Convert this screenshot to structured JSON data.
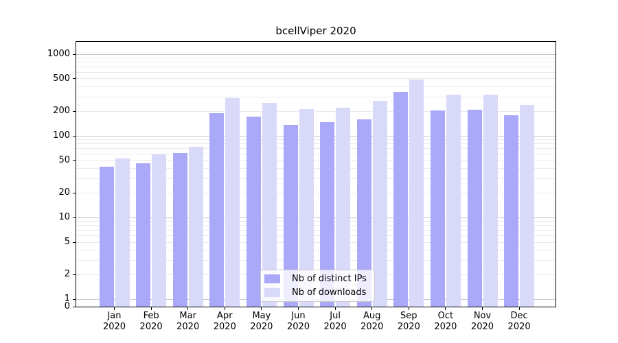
{
  "chart_data": {
    "type": "bar",
    "title": "bcellViper 2020",
    "categories": [
      "Jan 2020",
      "Feb 2020",
      "Mar 2020",
      "Apr 2020",
      "May 2020",
      "Jun 2020",
      "Jul 2020",
      "Aug 2020",
      "Sep 2020",
      "Oct 2020",
      "Nov 2020",
      "Dec 2020"
    ],
    "series": [
      {
        "name": "Nb of distinct IPs",
        "color": "#a9a9f8",
        "values": [
          42,
          46,
          62,
          190,
          172,
          137,
          147,
          160,
          347,
          204,
          210,
          178
        ]
      },
      {
        "name": "Nb of downloads",
        "color": "#d9d9f9",
        "values": [
          53,
          59,
          73,
          288,
          254,
          214,
          220,
          267,
          490,
          320,
          318,
          238
        ]
      }
    ],
    "xlabel": "",
    "ylabel": "",
    "yscale": "log above 1, linear 0-1 (symlog)",
    "y_ticks": [
      0,
      1,
      2,
      5,
      10,
      20,
      50,
      100,
      200,
      500,
      1000
    ],
    "ylim": [
      0,
      1400
    ],
    "grid": "horizontal, major (decades) + minor (2-9 per decade)",
    "legend_position": "lower center, inside plot",
    "colors": {
      "major_grid": "#c6c6c6",
      "minor_grid": "#eaeaea",
      "spine": "#000000",
      "legend_border": "#cccccc"
    }
  }
}
